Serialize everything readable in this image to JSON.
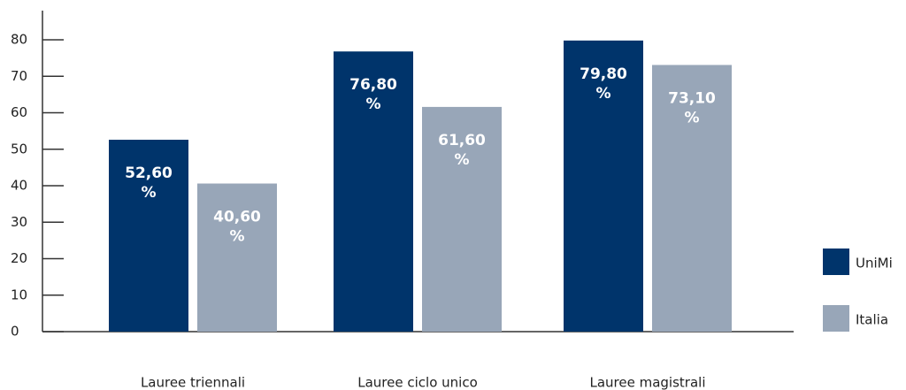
{
  "chart_data": {
    "type": "bar",
    "categories": [
      "Lauree triennali",
      "Lauree ciclo unico",
      "Lauree magistrali"
    ],
    "series": [
      {
        "name": "UniMi",
        "color": "#00346b",
        "values": [
          52.6,
          76.8,
          79.8
        ],
        "value_labels": [
          "52,60 %",
          "76,80 %",
          "79,80 %"
        ]
      },
      {
        "name": "Italia",
        "color": "#98a6b8",
        "values": [
          40.6,
          61.6,
          73.1
        ],
        "value_labels": [
          "40,60 %",
          "61,60 %",
          "73,10 %"
        ]
      }
    ],
    "ylim": [
      0,
      88
    ],
    "yticks": [
      0,
      10,
      20,
      30,
      40,
      50,
      60,
      70,
      80
    ],
    "legend": "right"
  }
}
